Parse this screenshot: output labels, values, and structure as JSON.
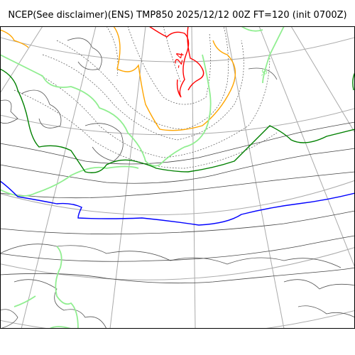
{
  "title": "NCEP(See disclaimer)(ENS) TMP850 2025/12/12 00Z FT=120 (init 0700Z)",
  "map": {
    "projection": "polar stereographic",
    "graticule": "on",
    "colors": {
      "coastline": "#555555",
      "graticule": "#aaaaaa",
      "contour_thin": "#444444",
      "contour_dotted": "#555555",
      "contour_blue": "#0000ff",
      "contour_green": "#008000",
      "contour_lightgreen": "#90ee90",
      "contour_orange": "#ffa500",
      "contour_red": "#ff0000"
    },
    "contour_labels": [
      {
        "text": "-24",
        "color": "#ff0000"
      },
      {
        "text": "-6",
        "color": "#90ee90"
      }
    ]
  }
}
